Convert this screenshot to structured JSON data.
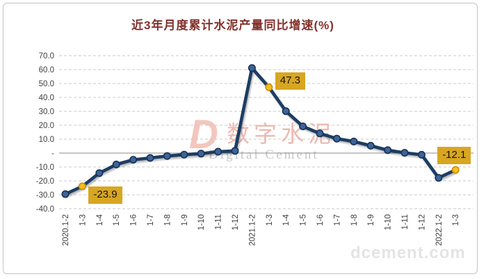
{
  "title": "近3年月度累计水泥产量同比增速(%)",
  "chart_data": {
    "type": "line",
    "title": "近3年月度累计水泥产量同比增速(%)",
    "xlabel": "",
    "ylabel": "",
    "ylim": [
      -40,
      70
    ],
    "grid": "horizontal-dashed",
    "zero_line": true,
    "legend": "none",
    "categories": [
      "2020.1-2",
      "1-3",
      "1-4",
      "1-5",
      "1-6",
      "1-7",
      "1-8",
      "1-9",
      "1-10",
      "1-11",
      "1-12",
      "2021.1-2",
      "1-3",
      "1-4",
      "1-5",
      "1-6",
      "1-7",
      "1-8",
      "1-9",
      "1-10",
      "1-11",
      "1-12",
      "2022.1-2",
      "1-3"
    ],
    "values": [
      -29.5,
      -23.9,
      -14.4,
      -8.2,
      -4.8,
      -3.5,
      -2.1,
      -1.1,
      -0.4,
      1.0,
      1.6,
      61.1,
      47.3,
      30.1,
      19.2,
      14.1,
      10.4,
      8.3,
      5.3,
      2.1,
      0.2,
      -1.2,
      -17.8,
      -12.1
    ],
    "y_ticks": [
      {
        "label": "70.0",
        "value": 70
      },
      {
        "label": "60.0",
        "value": 60
      },
      {
        "label": "50.0",
        "value": 50
      },
      {
        "label": "40.0",
        "value": 40
      },
      {
        "label": "30.0",
        "value": 30
      },
      {
        "label": "20.0",
        "value": 20
      },
      {
        "label": "10.0",
        "value": 10
      },
      {
        "label": "-",
        "value": 0
      },
      {
        "label": "-10.0",
        "value": -10
      },
      {
        "label": "-20.0",
        "value": -20
      },
      {
        "label": "-30.0",
        "value": -30
      },
      {
        "label": "-40.0",
        "value": -40
      }
    ],
    "highlights": [
      {
        "index": 1,
        "label": "-23.9"
      },
      {
        "index": 12,
        "label": "47.3"
      },
      {
        "index": 23,
        "label": "-12.1"
      }
    ]
  },
  "watermark": {
    "logo_letter": "D",
    "brand_cn": "数字水泥",
    "brand_en": "Digital Cement",
    "site": "dcement.com"
  },
  "colors": {
    "title": "#82312c",
    "line": "#1f3c64",
    "marker_fill": "#3d639c",
    "marker_edge": "#17324f",
    "highlight_fill": "#f5be1e",
    "highlight_edge": "#c98f00",
    "label_bg": "#d8a620",
    "label_text": "#141414",
    "grid": "#c8c8c8",
    "zero_line": "#8c8c8c",
    "tick_text": "#404040"
  }
}
